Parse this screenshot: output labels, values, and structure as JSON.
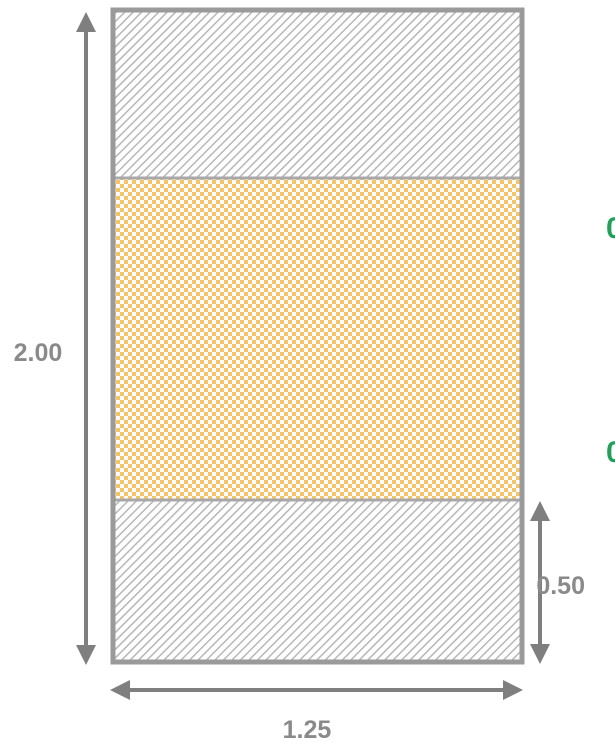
{
  "dimensions": {
    "height_label": "2.00",
    "width_label": "1.25",
    "bottom_band_label": "0.50"
  },
  "cut_off_text": {
    "upper_fragment": "0",
    "lower_fragment": "0"
  },
  "colors": {
    "outline": "#9a9a9a",
    "hatch_fill": "#b7b7b7",
    "checker_fill": "#f6c368",
    "arrow": "#7f7f7f",
    "label": "#8a8a8a",
    "green_text": "#22a05a"
  },
  "patterns": {
    "top_band": "diagonal-hatch",
    "middle_band": "checker",
    "bottom_band": "diagonal-hatch"
  }
}
